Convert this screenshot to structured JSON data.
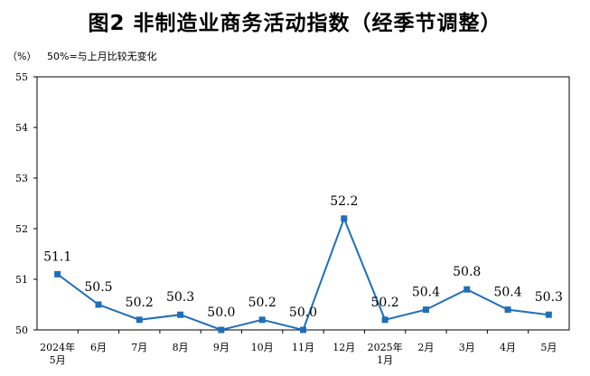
{
  "title": "图2 非制造业商务活动指数（经季节调整）",
  "unit_label": "（%）",
  "note": "50%=与上月比较无变化",
  "chart_data": {
    "type": "line",
    "title": "图2 非制造业商务活动指数（经季节调整）",
    "ylabel": "（%）",
    "categories": [
      "2024年\n5月",
      "6月",
      "7月",
      "8月",
      "9月",
      "10月",
      "11月",
      "12月",
      "2025年\n1月",
      "2月",
      "3月",
      "4月",
      "5月"
    ],
    "series": [
      {
        "name": "",
        "values": [
          51.1,
          50.5,
          50.2,
          50.3,
          50.0,
          50.2,
          50.0,
          52.2,
          50.2,
          50.4,
          50.8,
          50.4,
          50.3
        ]
      }
    ],
    "point_labels": [
      "51.1",
      "50.5",
      "50.2",
      "50.3",
      "50.0",
      "50.2",
      "50.0",
      "52.2",
      "50.2",
      "50.4",
      "50.8",
      "50.4",
      "50.3"
    ],
    "yticks": [
      "50",
      "51",
      "52",
      "53",
      "54",
      "55"
    ],
    "ylim": [
      50,
      55
    ],
    "grid": false,
    "line_color": "#1f6fb8"
  }
}
